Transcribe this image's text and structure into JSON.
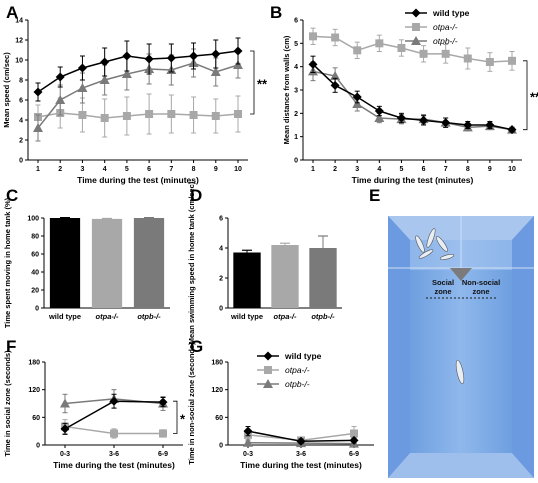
{
  "figure": {
    "panel_letters": [
      "A",
      "B",
      "C",
      "D",
      "E",
      "F",
      "G"
    ],
    "colors": {
      "wild_type": "#000000",
      "otpa": "#a8a8a8",
      "otpb": "#7a7a7a",
      "tank_dark": "#5b8fd6",
      "tank_light": "#b9d3f2",
      "tank_mid": "#8fb6e8"
    }
  },
  "legends": {
    "top": [
      "wild type",
      "otpa-/-",
      "otpb-/-"
    ],
    "bottom": [
      "wild type",
      "otpa-/-",
      "otpb-/-"
    ]
  },
  "tank": {
    "social_zone_label": [
      "Social",
      "zone"
    ],
    "non_social_zone_label": [
      "Non-social",
      "zone"
    ]
  },
  "chart_data": [
    {
      "panel": "A",
      "type": "line",
      "xlabel": "Time during the test (minutes)",
      "ylabel": "Mean speed (cm/sec)",
      "x": [
        1,
        2,
        3,
        4,
        5,
        6,
        7,
        8,
        9,
        10
      ],
      "xticks": [
        "1",
        "2",
        "3",
        "4",
        "5",
        "6",
        "7",
        "8",
        "9",
        "10"
      ],
      "ylim": [
        0,
        14
      ],
      "yticks": [
        0,
        2,
        4,
        6,
        8,
        10,
        12,
        14
      ],
      "series": [
        {
          "name": "wild type",
          "marker": "diamond",
          "values": [
            6.8,
            8.3,
            9.2,
            9.8,
            10.4,
            10.1,
            10.2,
            10.4,
            10.6,
            10.9
          ],
          "errors": [
            0.9,
            1.0,
            1.2,
            1.4,
            1.5,
            1.5,
            1.4,
            1.3,
            1.4,
            1.3
          ]
        },
        {
          "name": "otpa-/-",
          "marker": "square",
          "values": [
            4.3,
            4.7,
            4.5,
            4.2,
            4.4,
            4.6,
            4.6,
            4.5,
            4.4,
            4.6
          ],
          "errors": [
            1.2,
            1.5,
            1.7,
            1.9,
            1.9,
            2.0,
            1.9,
            1.8,
            1.7,
            1.8
          ]
        },
        {
          "name": "otpb-/-",
          "marker": "triangle",
          "values": [
            3.2,
            6.0,
            7.2,
            8.0,
            8.6,
            9.1,
            9.0,
            9.7,
            8.8,
            9.5
          ],
          "errors": [
            1.3,
            1.5,
            1.5,
            1.5,
            1.6,
            1.5,
            1.5,
            1.4,
            1.4,
            1.3
          ]
        }
      ],
      "significance": "**"
    },
    {
      "panel": "B",
      "type": "line",
      "xlabel": "Time during the test (minutes)",
      "ylabel": "Mean distance from walls (cm)",
      "x": [
        1,
        2,
        3,
        4,
        5,
        6,
        7,
        8,
        9,
        10
      ],
      "xticks": [
        "1",
        "2",
        "3",
        "4",
        "5",
        "6",
        "7",
        "8",
        "9",
        "10"
      ],
      "ylim": [
        0,
        6
      ],
      "yticks": [
        0,
        1,
        2,
        3,
        4,
        5,
        6
      ],
      "series": [
        {
          "name": "wild type",
          "marker": "diamond",
          "values": [
            4.1,
            3.2,
            2.7,
            2.1,
            1.8,
            1.7,
            1.6,
            1.5,
            1.5,
            1.3
          ],
          "errors": [
            0.35,
            0.3,
            0.25,
            0.2,
            0.2,
            0.2,
            0.2,
            0.15,
            0.15,
            0.1
          ]
        },
        {
          "name": "otpa-/-",
          "marker": "square",
          "values": [
            5.3,
            5.25,
            4.7,
            5.0,
            4.8,
            4.55,
            4.55,
            4.35,
            4.2,
            4.25
          ],
          "errors": [
            0.35,
            0.35,
            0.35,
            0.35,
            0.35,
            0.35,
            0.4,
            0.45,
            0.4,
            0.4
          ]
        },
        {
          "name": "otpb-/-",
          "marker": "triangle",
          "values": [
            3.8,
            3.6,
            2.4,
            1.8,
            1.75,
            1.75,
            1.6,
            1.4,
            1.45,
            1.3
          ],
          "errors": [
            0.4,
            0.35,
            0.3,
            0.2,
            0.2,
            0.2,
            0.2,
            0.15,
            0.15,
            0.1
          ]
        }
      ],
      "significance": "**"
    },
    {
      "panel": "C",
      "type": "bar",
      "ylabel": "Time spent moving in home tank (%)",
      "categories": [
        "wild type",
        "otpa-/-",
        "otpb-/-"
      ],
      "values": [
        100,
        99,
        100
      ],
      "errors": [
        0,
        0.5,
        0
      ],
      "ylim": [
        0,
        100
      ],
      "yticks": [
        0,
        20,
        40,
        60,
        80,
        100
      ]
    },
    {
      "panel": "D",
      "type": "bar",
      "ylabel": "Mean swimming speed in home tank (cm/sec)",
      "categories": [
        "wild type",
        "otpa-/-",
        "otpb-/-"
      ],
      "values": [
        3.7,
        4.2,
        4.0
      ],
      "errors": [
        0.15,
        0.12,
        0.8
      ],
      "ylim": [
        0,
        6
      ],
      "yticks": [
        0,
        2,
        4,
        6
      ]
    },
    {
      "panel": "F",
      "type": "line",
      "xlabel": "Time during the test (minutes)",
      "ylabel": "Time in social zone (seconds)",
      "xticks": [
        "0-3",
        "3-6",
        "6-9"
      ],
      "ylim": [
        0,
        180
      ],
      "yticks": [
        0,
        60,
        120,
        180
      ],
      "series": [
        {
          "name": "wild type",
          "marker": "diamond",
          "values": [
            35,
            95,
            93
          ],
          "errors": [
            12,
            15,
            10
          ]
        },
        {
          "name": "otpa-/-",
          "marker": "square",
          "values": [
            40,
            25,
            25
          ],
          "errors": [
            15,
            10,
            8
          ]
        },
        {
          "name": "otpb-/-",
          "marker": "triangle",
          "values": [
            90,
            100,
            90
          ],
          "errors": [
            20,
            20,
            15
          ]
        }
      ],
      "significance": "*"
    },
    {
      "panel": "G",
      "type": "line",
      "xlabel": "Time during the test (minutes)",
      "ylabel": "Time in non-social zone (seconds)",
      "xticks": [
        "0-3",
        "3-6",
        "6-9"
      ],
      "ylim": [
        0,
        180
      ],
      "yticks": [
        0,
        60,
        120,
        180
      ],
      "series": [
        {
          "name": "wild type",
          "marker": "diamond",
          "values": [
            30,
            8,
            10
          ],
          "errors": [
            10,
            5,
            5
          ]
        },
        {
          "name": "otpa-/-",
          "marker": "square",
          "values": [
            22,
            10,
            25
          ],
          "errors": [
            10,
            6,
            15
          ]
        },
        {
          "name": "otpb-/-",
          "marker": "triangle",
          "values": [
            5,
            4,
            3
          ],
          "errors": [
            4,
            3,
            3
          ]
        }
      ]
    }
  ]
}
